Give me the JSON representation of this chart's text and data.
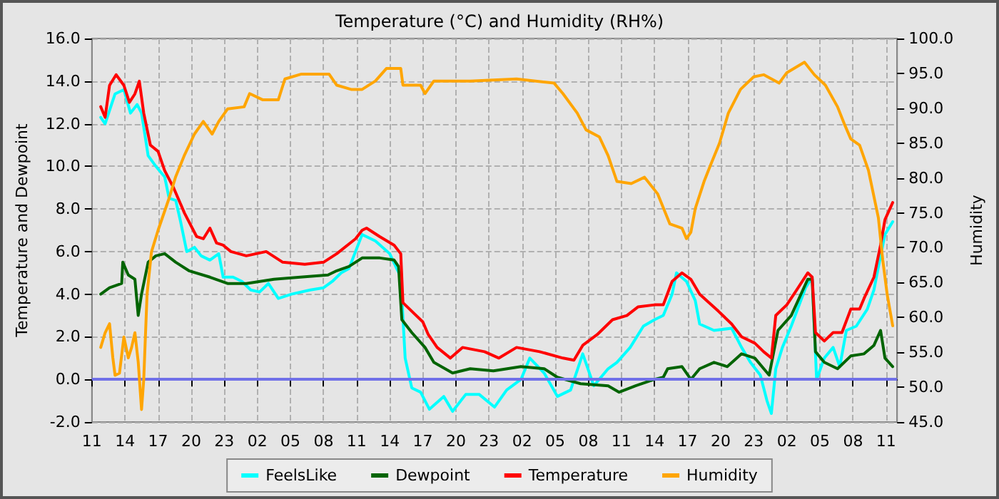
{
  "chart_data": {
    "type": "line",
    "title": "Temperature (°C) and Humidity (RH%)",
    "ylabel": "Temperature and Dewpoint",
    "y2label": "Humidity",
    "xlim": [
      "--01-01T11:00",
      "--01-04T12:00"
    ],
    "xticks": [
      {
        "value": "--01-01T11:00",
        "label": "11"
      },
      {
        "value": "--01-01T14:00",
        "label": "14"
      },
      {
        "value": "--01-01T17:00",
        "label": "17"
      },
      {
        "value": "--01-01T20:00",
        "label": "20"
      },
      {
        "value": "--01-01T23:00",
        "label": "23"
      },
      {
        "value": "--01-02T02:00",
        "label": "02"
      },
      {
        "value": "--01-02T05:00",
        "label": "05"
      },
      {
        "value": "--01-02T08:00",
        "label": "08"
      },
      {
        "value": "--01-02T11:00",
        "label": "11"
      },
      {
        "value": "--01-02T14:00",
        "label": "14"
      },
      {
        "value": "--01-02T17:00",
        "label": "17"
      },
      {
        "value": "--01-02T20:00",
        "label": "20"
      },
      {
        "value": "--01-02T23:00",
        "label": "23"
      },
      {
        "value": "--01-03T02:00",
        "label": "02"
      },
      {
        "value": "--01-03T05:00",
        "label": "05"
      },
      {
        "value": "--01-03T08:00",
        "label": "08"
      },
      {
        "value": "--01-03T11:00",
        "label": "11"
      },
      {
        "value": "--01-03T14:00",
        "label": "14"
      },
      {
        "value": "--01-03T17:00",
        "label": "17"
      },
      {
        "value": "--01-03T20:00",
        "label": "20"
      },
      {
        "value": "--01-03T23:00",
        "label": "23"
      },
      {
        "value": "--01-04T02:00",
        "label": "02"
      },
      {
        "value": "--01-04T05:00",
        "label": "05"
      },
      {
        "value": "--01-04T08:00",
        "label": "08"
      },
      {
        "value": "--01-04T11:00",
        "label": "11"
      }
    ],
    "ylim": [
      -2,
      16
    ],
    "yticks": [
      {
        "value": -2,
        "label": "-2.0"
      },
      {
        "value": 0,
        "label": "0.0"
      },
      {
        "value": 2,
        "label": "2.0"
      },
      {
        "value": 4,
        "label": "4.0"
      },
      {
        "value": 6,
        "label": "6.0"
      },
      {
        "value": 8,
        "label": "8.0"
      },
      {
        "value": 10,
        "label": "10.0"
      },
      {
        "value": 12,
        "label": "12.0"
      },
      {
        "value": 14,
        "label": "14.0"
      },
      {
        "value": 16,
        "label": "16.0"
      }
    ],
    "y2lim": [
      45,
      100
    ],
    "y2ticks": [
      {
        "value": 45,
        "label": "45.0"
      },
      {
        "value": 50,
        "label": "50.0"
      },
      {
        "value": 55,
        "label": "55.0"
      },
      {
        "value": 60,
        "label": "60.0"
      },
      {
        "value": 65,
        "label": "65.0"
      },
      {
        "value": 70,
        "label": "70.0"
      },
      {
        "value": 75,
        "label": "75.0"
      },
      {
        "value": 80,
        "label": "80.0"
      },
      {
        "value": 85,
        "label": "85.0"
      },
      {
        "value": 90,
        "label": "90.0"
      },
      {
        "value": 95,
        "label": "95.0"
      },
      {
        "value": 100,
        "label": "100.0"
      }
    ],
    "grid": true,
    "legend": "bottom",
    "marker": "none",
    "line_style": "solid",
    "ref_lines": [
      {
        "axis": "y",
        "value": 0,
        "color": "#7070e8"
      }
    ],
    "series": [
      {
        "name": "FeelsLike",
        "color": "#00ffff",
        "x": [
          "--01-01T11:48",
          "--01-01T12:12",
          "--01-01T13:06",
          "--01-01T13:54",
          "--01-01T14:30",
          "--01-01T15:06",
          "--01-01T15:30",
          "--01-01T16:06",
          "--01-01T16:48",
          "--01-01T17:36",
          "--01-01T18:00",
          "--01-01T18:36",
          "--01-01T19:00",
          "--01-01T19:36",
          "--01-01T20:18",
          "--01-01T20:54",
          "--01-01T21:42",
          "--01-01T22:30",
          "--01-01T22:54",
          "--01-01T23:48",
          "--01-02T00:36",
          "--01-02T01:24",
          "--01-02T02:12",
          "--01-02T03:00",
          "--01-02T03:54",
          "--01-02T05:06",
          "--01-02T06:48",
          "--01-02T08:00",
          "--01-02T08:48",
          "--01-02T09:36",
          "--01-02T10:18",
          "--01-02T10:54",
          "--01-02T11:30",
          "--01-02T12:42",
          "--01-02T14:00",
          "--01-02T15:00",
          "--01-02T15:24",
          "--01-02T16:00",
          "--01-02T16:48",
          "--01-02T17:36",
          "--01-02T18:54",
          "--01-02T19:42",
          "--01-02T20:54",
          "--01-02T22:06",
          "--01-02T23:30",
          "--01-03T00:36",
          "--01-03T01:54",
          "--01-03T02:42",
          "--01-03T04:00",
          "--01-03T05:12",
          "--01-03T06:24",
          "--01-03T07:30",
          "--01-03T08:30",
          "--01-03T09:48",
          "--01-03T10:36",
          "--01-03T11:48",
          "--01-03T13:00",
          "--01-03T14:00",
          "--01-03T14:48",
          "--01-03T15:36",
          "--01-03T16:00",
          "--01-03T16:54",
          "--01-03T17:42",
          "--01-03T18:06",
          "--01-03T19:24",
          "--01-03T21:00",
          "--01-03T21:54",
          "--01-03T22:42",
          "--01-03T23:36",
          "--01-04T00:12",
          "--01-04T00:36",
          "--01-04T01:00",
          "--01-04T01:36",
          "--01-04T02:24",
          "--01-04T03:42",
          "--01-04T04:18",
          "--01-04T04:42",
          "--01-04T05:24",
          "--01-04T06:12",
          "--01-04T06:48",
          "--01-04T07:24",
          "--01-04T08:18",
          "--01-04T09:18",
          "--01-04T09:54",
          "--01-04T10:30",
          "--01-04T10:54",
          "--01-04T11:36"
        ],
        "values": [
          12.3,
          12.0,
          13.4,
          13.6,
          12.5,
          12.9,
          12.5,
          10.5,
          10.0,
          9.5,
          8.5,
          8.4,
          7.5,
          6.0,
          6.2,
          5.8,
          5.6,
          5.9,
          4.8,
          4.8,
          4.6,
          4.2,
          4.1,
          4.5,
          3.8,
          4.0,
          4.2,
          4.3,
          4.6,
          5.0,
          5.2,
          6.0,
          6.8,
          6.5,
          5.9,
          4.8,
          1.0,
          -0.4,
          -0.6,
          -1.4,
          -0.8,
          -1.5,
          -0.7,
          -0.7,
          -1.3,
          -0.5,
          0.0,
          1.0,
          0.3,
          -0.8,
          -0.5,
          1.2,
          -0.3,
          0.5,
          0.8,
          1.5,
          2.5,
          2.8,
          3.0,
          4.0,
          5.0,
          4.6,
          3.7,
          2.6,
          2.3,
          2.4,
          1.5,
          0.8,
          0.2,
          -1.0,
          -1.6,
          0.5,
          1.5,
          2.5,
          4.3,
          4.8,
          0.0,
          1.0,
          1.5,
          0.6,
          2.3,
          2.5,
          3.3,
          4.2,
          5.8,
          6.8,
          7.4
        ]
      },
      {
        "name": "Dewpoint",
        "color": "#006400",
        "x": [
          "--01-01T11:48",
          "--01-01T12:36",
          "--01-01T13:42",
          "--01-01T13:48",
          "--01-01T14:18",
          "--01-01T14:54",
          "--01-01T15:12",
          "--01-01T15:30",
          "--01-01T16:06",
          "--01-01T16:48",
          "--01-01T17:36",
          "--01-01T18:36",
          "--01-01T19:48",
          "--01-01T21:42",
          "--01-01T23:18",
          "--01-02T01:00",
          "--01-02T03:30",
          "--01-02T05:54",
          "--01-02T08:24",
          "--01-02T09:12",
          "--01-02T10:18",
          "--01-02T11:30",
          "--01-02T13:06",
          "--01-02T14:24",
          "--01-02T14:48",
          "--01-02T15:06",
          "--01-02T16:00",
          "--01-02T17:12",
          "--01-02T18:00",
          "--01-02T19:42",
          "--01-02T21:18",
          "--01-02T23:24",
          "--01-03T01:54",
          "--01-03T04:00",
          "--01-03T05:12",
          "--01-03T07:18",
          "--01-03T09:48",
          "--01-03T10:48",
          "--01-03T12:18",
          "--01-03T14:00",
          "--01-03T14:48",
          "--01-03T15:12",
          "--01-03T16:30",
          "--01-03T17:18",
          "--01-03T18:06",
          "--01-03T19:24",
          "--01-03T20:36",
          "--01-03T21:54",
          "--01-03T23:06",
          "--01-04T00:24",
          "--01-04T01:12",
          "--01-04T02:24",
          "--01-04T03:54",
          "--01-04T04:18",
          "--01-04T04:36",
          "--01-04T05:24",
          "--01-04T06:36",
          "--01-04T07:48",
          "--01-04T09:00",
          "--01-04T09:54",
          "--01-04T10:30",
          "--01-04T10:54",
          "--01-04T11:36"
        ],
        "values": [
          4.0,
          4.3,
          4.5,
          5.5,
          4.9,
          4.7,
          3.0,
          4.0,
          5.5,
          5.8,
          5.9,
          5.5,
          5.1,
          4.8,
          4.5,
          4.5,
          4.7,
          4.8,
          4.9,
          5.1,
          5.3,
          5.7,
          5.7,
          5.6,
          5.3,
          2.8,
          2.2,
          1.5,
          0.8,
          0.3,
          0.5,
          0.4,
          0.6,
          0.5,
          0.1,
          -0.2,
          -0.3,
          -0.6,
          -0.3,
          0.0,
          0.1,
          0.5,
          0.6,
          0.0,
          0.5,
          0.8,
          0.6,
          1.2,
          1.0,
          0.2,
          2.3,
          3.0,
          4.7,
          4.7,
          1.3,
          0.8,
          0.5,
          1.1,
          1.2,
          1.6,
          2.3,
          1.0,
          0.6
        ]
      },
      {
        "name": "Temperature",
        "color": "#ff0000",
        "x": [
          "--01-01T11:48",
          "--01-01T12:12",
          "--01-01T12:36",
          "--01-01T13:12",
          "--01-01T13:54",
          "--01-01T14:24",
          "--01-01T14:54",
          "--01-01T15:18",
          "--01-01T15:42",
          "--01-01T16:18",
          "--01-01T17:00",
          "--01-01T17:36",
          "--01-01T18:24",
          "--01-01T19:24",
          "--01-01T20:30",
          "--01-01T21:06",
          "--01-01T21:42",
          "--01-01T22:18",
          "--01-01T22:54",
          "--01-01T23:36",
          "--01-02T01:00",
          "--01-02T02:48",
          "--01-02T04:18",
          "--01-02T06:18",
          "--01-02T08:00",
          "--01-02T09:12",
          "--01-02T10:54",
          "--01-02T11:30",
          "--01-02T11:54",
          "--01-02T13:06",
          "--01-02T14:24",
          "--01-02T15:00",
          "--01-02T15:12",
          "--01-02T16:12",
          "--01-02T17:00",
          "--01-02T17:30",
          "--01-02T18:18",
          "--01-02T19:30",
          "--01-02T20:36",
          "--01-02T22:36",
          "--01-02T23:54",
          "--01-03T01:30",
          "--01-03T03:36",
          "--01-03T05:42",
          "--01-03T06:42",
          "--01-03T07:30",
          "--01-03T08:48",
          "--01-03T10:12",
          "--01-03T11:30",
          "--01-03T12:30",
          "--01-03T14:00",
          "--01-03T14:48",
          "--01-03T15:36",
          "--01-03T16:30",
          "--01-03T17:18",
          "--01-03T18:06",
          "--01-03T19:48",
          "--01-03T21:00",
          "--01-03T21:54",
          "--01-03T23:06",
          "--01-03T23:54",
          "--01-04T00:36",
          "--01-04T01:00",
          "--01-04T02:00",
          "--01-04T02:54",
          "--01-04T03:54",
          "--01-04T04:18",
          "--01-04T04:36",
          "--01-04T05:24",
          "--01-04T06:12",
          "--01-04T07:00",
          "--01-04T07:48",
          "--01-04T08:36",
          "--01-04T09:00",
          "--01-04T09:54",
          "--01-04T10:30",
          "--01-04T10:54",
          "--01-04T11:36"
        ],
        "values": [
          12.8,
          12.3,
          13.8,
          14.3,
          13.8,
          13.0,
          13.4,
          14.0,
          12.5,
          11.0,
          10.7,
          9.8,
          9.0,
          7.8,
          6.7,
          6.6,
          7.1,
          6.4,
          6.3,
          6.0,
          5.8,
          6.0,
          5.5,
          5.4,
          5.5,
          5.9,
          6.6,
          7.0,
          7.1,
          6.7,
          6.3,
          5.9,
          3.6,
          3.1,
          2.7,
          2.1,
          1.5,
          1.0,
          1.5,
          1.3,
          1.0,
          1.5,
          1.3,
          1.0,
          0.9,
          1.6,
          2.1,
          2.8,
          3.0,
          3.4,
          3.5,
          3.5,
          4.6,
          5.0,
          4.7,
          4.0,
          3.2,
          2.6,
          2.0,
          1.7,
          1.3,
          1.0,
          3.0,
          3.5,
          4.2,
          5.0,
          4.8,
          2.2,
          1.8,
          2.2,
          2.2,
          3.3,
          3.3,
          3.8,
          4.8,
          6.3,
          7.5,
          8.3
        ]
      },
      {
        "name": "Humidity",
        "color": "#ffa500",
        "axis": "y2",
        "x": [
          "--01-01T11:48",
          "--01-01T12:12",
          "--01-01T12:36",
          "--01-01T12:54",
          "--01-01T13:06",
          "--01-01T13:30",
          "--01-01T13:54",
          "--01-01T14:18",
          "--01-01T14:36",
          "--01-01T14:54",
          "--01-01T15:12",
          "--01-01T15:30",
          "--01-01T15:42",
          "--01-01T16:00",
          "--01-01T16:24",
          "--01-01T17:00",
          "--01-01T18:00",
          "--01-01T18:36",
          "--01-01T19:24",
          "--01-01T20:18",
          "--01-01T21:06",
          "--01-01T21:54",
          "--01-01T22:30",
          "--01-01T23:18",
          "--01-02T00:48",
          "--01-02T01:18",
          "--01-02T02:30",
          "--01-02T03:54",
          "--01-02T04:30",
          "--01-02T06:00",
          "--01-02T08:30",
          "--01-02T09:12",
          "--01-02T10:30",
          "--01-02T11:30",
          "--01-02T12:42",
          "--01-02T13:42",
          "--01-02T15:00",
          "--01-02T15:12",
          "--01-02T16:48",
          "--01-02T17:12",
          "--01-02T18:00",
          "--01-02T21:18",
          "--01-03T01:30",
          "--01-03T04:54",
          "--01-03T05:42",
          "--01-03T07:00",
          "--01-03T07:48",
          "--01-03T09:00",
          "--01-03T09:48",
          "--01-03T10:36",
          "--01-03T11:54",
          "--01-03T13:06",
          "--01-03T14:18",
          "--01-03T15:24",
          "--01-03T16:30",
          "--01-03T16:54",
          "--01-03T17:18",
          "--01-03T17:42",
          "--01-03T18:30",
          "--01-03T19:06",
          "--01-03T19:54",
          "--01-03T20:42",
          "--01-03T21:48",
          "--01-03T23:00",
          "--01-03T23:54",
          "--01-04T01:18",
          "--01-04T02:00",
          "--01-04T03:36",
          "--01-04T04:30",
          "--01-04T05:30",
          "--01-04T06:36",
          "--01-04T07:12",
          "--01-04T07:48",
          "--01-04T08:36",
          "--01-04T09:24",
          "--01-04T10:18",
          "--01-04T10:42",
          "--01-04T11:06",
          "--01-04T11:36"
        ],
        "values": [
          55.7,
          57.8,
          59.1,
          54.2,
          51.7,
          52.0,
          57.2,
          54.2,
          55.7,
          57.8,
          53.6,
          46.8,
          51.1,
          63.3,
          69.4,
          72.5,
          77.1,
          80.2,
          83.3,
          86.3,
          88.1,
          86.3,
          88.1,
          89.9,
          90.2,
          92.1,
          91.2,
          91.2,
          94.2,
          94.9,
          94.9,
          93.3,
          92.7,
          92.7,
          93.9,
          95.7,
          95.7,
          93.3,
          93.3,
          92.1,
          93.9,
          93.9,
          94.2,
          93.6,
          92.1,
          89.3,
          86.9,
          85.9,
          83.2,
          79.5,
          79.2,
          80.1,
          77.7,
          73.4,
          72.8,
          71.3,
          72.2,
          75.6,
          79.5,
          81.9,
          85.0,
          89.3,
          92.7,
          94.5,
          94.8,
          93.6,
          95.1,
          96.6,
          94.8,
          93.3,
          90.2,
          87.8,
          85.6,
          84.7,
          81.1,
          74.3,
          68.2,
          63.3,
          58.8
        ]
      }
    ]
  }
}
